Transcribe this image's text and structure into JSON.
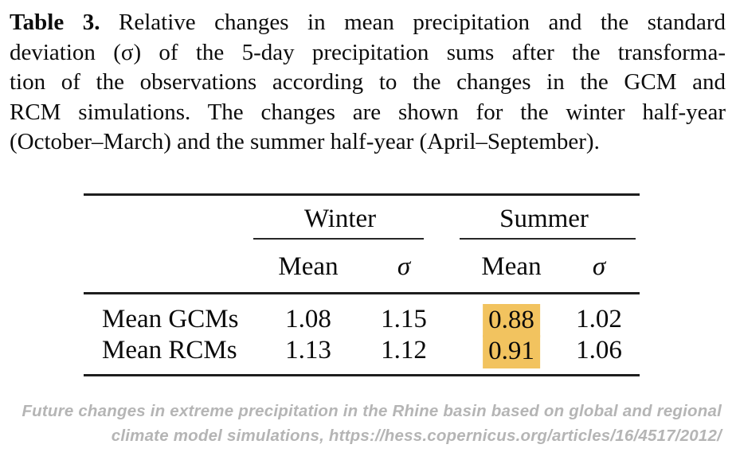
{
  "caption": {
    "label": "Table 3.",
    "lines": [
      "Relative changes in mean precipitation and the standard",
      "deviation (σ) of the 5-day precipitation sums after the transforma-",
      "tion of the observations according to the changes in the GCM and",
      "RCM simulations. The changes are shown for the winter half-year",
      "(October–March) and the summer half-year (April–September)."
    ]
  },
  "table": {
    "group_headers": [
      {
        "label": "Winter"
      },
      {
        "label": "Summer"
      }
    ],
    "sub_headers": [
      "Mean",
      "σ",
      "Mean",
      "σ"
    ],
    "rows": [
      {
        "label": "Mean GCMs",
        "values": [
          "1.08",
          "1.15",
          "0.88",
          "1.02"
        ],
        "highlight_col": 2
      },
      {
        "label": "Mean RCMs",
        "values": [
          "1.13",
          "1.12",
          "0.91",
          "1.06"
        ],
        "highlight_col": 2
      }
    ]
  },
  "footer": {
    "lines": [
      "Future changes in extreme precipitation in the Rhine basin based on global and regional",
      "climate model simulations, https://hess.copernicus.org/articles/16/4517/2012/"
    ]
  },
  "colors": {
    "highlight": "#F2C35F",
    "footer_text": "#B5B5B5"
  }
}
